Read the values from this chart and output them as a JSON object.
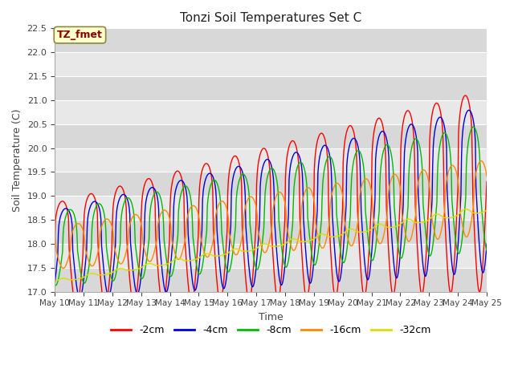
{
  "title": "Tonzi Soil Temperatures Set C",
  "xlabel": "Time",
  "ylabel": "Soil Temperature (C)",
  "ylim": [
    17.0,
    22.5
  ],
  "annotation": "TZ_fmet",
  "legend_labels": [
    "-2cm",
    "-4cm",
    "-8cm",
    "-16cm",
    "-32cm"
  ],
  "line_colors": [
    "#ff0000",
    "#0000dd",
    "#00bb00",
    "#ff8800",
    "#dddd00"
  ],
  "fig_bg": "#ffffff",
  "plot_bg": "#e8e8e8",
  "n_points": 720,
  "start_day": 10,
  "end_day": 25,
  "base_start": [
    17.85,
    17.85,
    17.85,
    17.85,
    17.2
  ],
  "base_end": [
    19.3,
    19.3,
    19.1,
    18.85,
    18.7
  ],
  "amp_start": [
    1.2,
    1.0,
    0.8,
    0.5,
    0.05
  ],
  "amp_end": [
    2.3,
    1.9,
    1.4,
    0.9,
    0.1
  ],
  "phase_shifts": [
    0.0,
    0.12,
    0.28,
    0.55,
    0.0
  ],
  "peak_sharpness": [
    4.0,
    4.0,
    3.0,
    2.5,
    1.0
  ]
}
